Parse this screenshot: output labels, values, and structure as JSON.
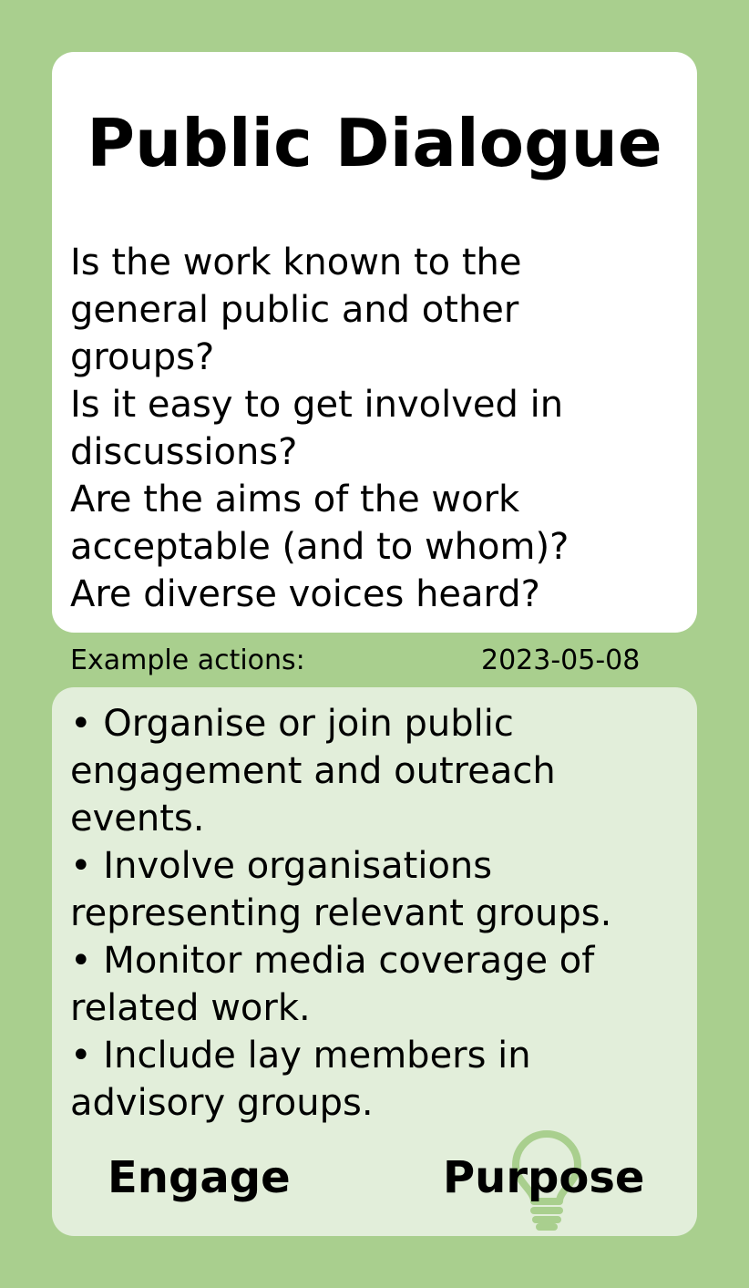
{
  "card": {
    "title": "Public Dialogue",
    "questions": [
      "Is the work known to the",
      "general public and other",
      "groups?",
      "Is it easy to get involved in",
      "discussions?",
      "Are the aims of the work",
      "acceptable (and to whom)?",
      "Are diverse voices heard?"
    ],
    "section_label": "Example actions:",
    "date": "2023-05-08",
    "actions": [
      "• Organise or join public",
      "engagement and outreach",
      "events.",
      "• Involve organisations",
      "representing relevant groups.",
      "• Monitor media coverage of",
      "related work.",
      "• Include lay members in",
      "advisory groups."
    ],
    "footer_left": "Engage",
    "footer_right": "Purpose",
    "icon": "lightbulb-icon"
  },
  "colors": {
    "background": "#a9cf8e",
    "top_card": "#ffffff",
    "bottom_card": "#e2eeda",
    "icon": "#a9cf8e"
  }
}
